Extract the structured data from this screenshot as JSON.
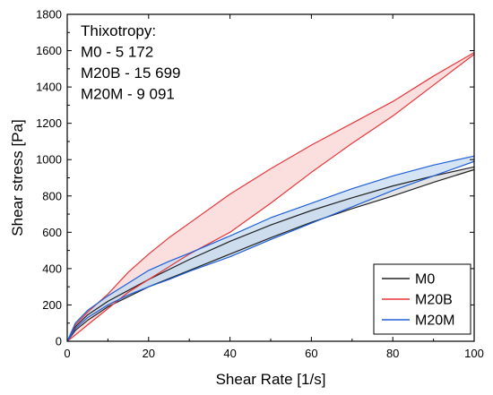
{
  "chart_data": {
    "type": "line",
    "xlabel": "Shear Rate [1/s]",
    "ylabel": "Shear stress [Pa]",
    "xlim": [
      0,
      100
    ],
    "ylim": [
      0,
      1800
    ],
    "xticks": [
      0,
      20,
      40,
      60,
      80,
      100
    ],
    "yticks": [
      0,
      200,
      400,
      600,
      800,
      1000,
      1200,
      1400,
      1600,
      1800
    ],
    "grid": false,
    "legend_position": "bottom-right",
    "annotation": [
      "Thixotropy:",
      "M0 - 5 172",
      "M20B - 15 699",
      "M20M - 9 091"
    ],
    "series": [
      {
        "name": "M0",
        "color": "#222222",
        "fill": "#d9d9d9",
        "up": {
          "x": [
            0,
            2,
            5,
            10,
            20,
            30,
            40,
            50,
            60,
            70,
            80,
            90,
            100
          ],
          "y": [
            0,
            80,
            145,
            220,
            340,
            450,
            550,
            640,
            720,
            790,
            855,
            910,
            960
          ]
        },
        "down": {
          "x": [
            0,
            2,
            5,
            10,
            20,
            30,
            40,
            50,
            60,
            70,
            80,
            90,
            100
          ],
          "y": [
            0,
            60,
            115,
            190,
            300,
            390,
            480,
            570,
            655,
            730,
            800,
            875,
            945
          ]
        }
      },
      {
        "name": "M20B",
        "color": "#e8363a",
        "fill": "#f9d4d4",
        "up": {
          "x": [
            0,
            2,
            5,
            10,
            15,
            20,
            25,
            30,
            40,
            50,
            60,
            70,
            80,
            90,
            100
          ],
          "y": [
            0,
            90,
            160,
            260,
            380,
            480,
            570,
            650,
            810,
            950,
            1080,
            1200,
            1320,
            1460,
            1590
          ]
        },
        "down": {
          "x": [
            0,
            2,
            5,
            10,
            15,
            20,
            25,
            30,
            40,
            50,
            60,
            70,
            80,
            90,
            100
          ],
          "y": [
            0,
            35,
            90,
            180,
            270,
            340,
            410,
            480,
            600,
            760,
            930,
            1090,
            1240,
            1410,
            1580
          ]
        }
      },
      {
        "name": "M20M",
        "color": "#1f5fd6",
        "fill": "#c6dbf0",
        "up": {
          "x": [
            0,
            2,
            5,
            10,
            15,
            20,
            25,
            30,
            40,
            50,
            60,
            70,
            80,
            90,
            100
          ],
          "y": [
            0,
            100,
            170,
            250,
            320,
            390,
            440,
            485,
            580,
            680,
            760,
            840,
            910,
            970,
            1020
          ]
        },
        "down": {
          "x": [
            0,
            2,
            5,
            10,
            15,
            20,
            25,
            30,
            40,
            50,
            60,
            70,
            80,
            90,
            100
          ],
          "y": [
            0,
            70,
            130,
            200,
            255,
            300,
            340,
            385,
            465,
            560,
            650,
            740,
            830,
            910,
            990
          ]
        }
      }
    ]
  }
}
